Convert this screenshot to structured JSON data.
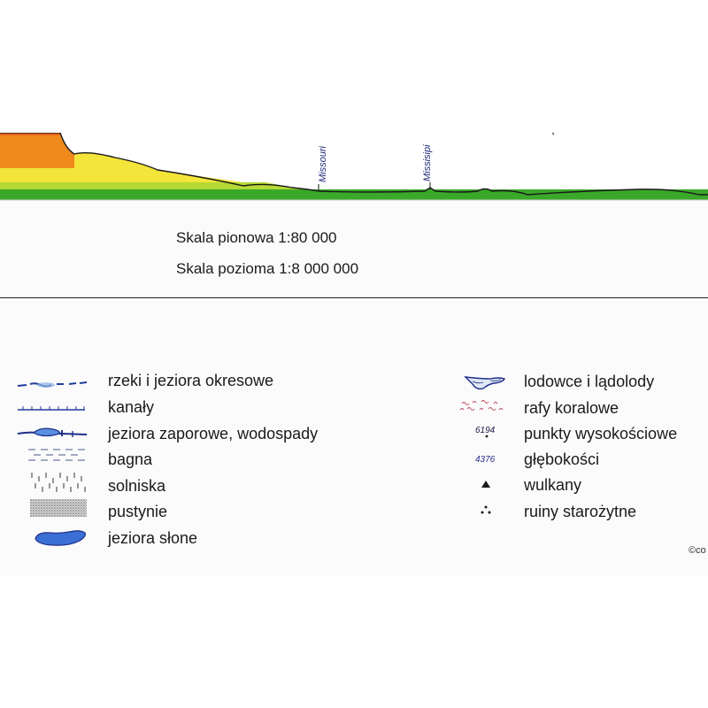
{
  "profile": {
    "river_labels": [
      "Missouri",
      "Missisipi"
    ],
    "colors": {
      "orange": "#f08a1c",
      "dark_orange": "#e4641e",
      "yellow": "#f3e53a",
      "light_green": "#b6d936",
      "green": "#3aa829",
      "outline": "#1a1a1a"
    }
  },
  "scale": {
    "vertical": "Skala pionowa 1:80 000",
    "horizontal": "Skala pozioma 1:8 000 000"
  },
  "legend": {
    "left": [
      {
        "id": "intermittent-rivers",
        "label": "rzeki i jeziora okresowe",
        "symbol": "dashed-river-icon"
      },
      {
        "id": "canals",
        "label": "kanały",
        "symbol": "canal-icon"
      },
      {
        "id": "reservoirs",
        "label": "jeziora zaporowe, wodospady",
        "symbol": "reservoir-icon"
      },
      {
        "id": "swamps",
        "label": "bagna",
        "symbol": "swamp-icon"
      },
      {
        "id": "salt-flats",
        "label": "solniska",
        "symbol": "salt-flat-icon"
      },
      {
        "id": "deserts",
        "label": "pustynie",
        "symbol": "desert-icon"
      },
      {
        "id": "salt-lakes",
        "label": "jeziora słone",
        "symbol": "salt-lake-icon"
      }
    ],
    "right": [
      {
        "id": "glaciers",
        "label": "lodowce i lądolody",
        "symbol": "glacier-icon"
      },
      {
        "id": "coral-reefs",
        "label": "rafy koralowe",
        "symbol": "coral-reef-icon"
      },
      {
        "id": "spot-heights",
        "label": "punkty wysokościowe",
        "symbol": "spot-height-icon",
        "sample": "6194"
      },
      {
        "id": "depths",
        "label": "głębokości",
        "symbol": "depth-icon",
        "sample": "4376"
      },
      {
        "id": "volcanoes",
        "label": "wulkany",
        "symbol": "volcano-icon"
      },
      {
        "id": "ruins",
        "label": "ruiny starożytne",
        "symbol": "ruins-icon"
      }
    ]
  },
  "copyright": "©co"
}
